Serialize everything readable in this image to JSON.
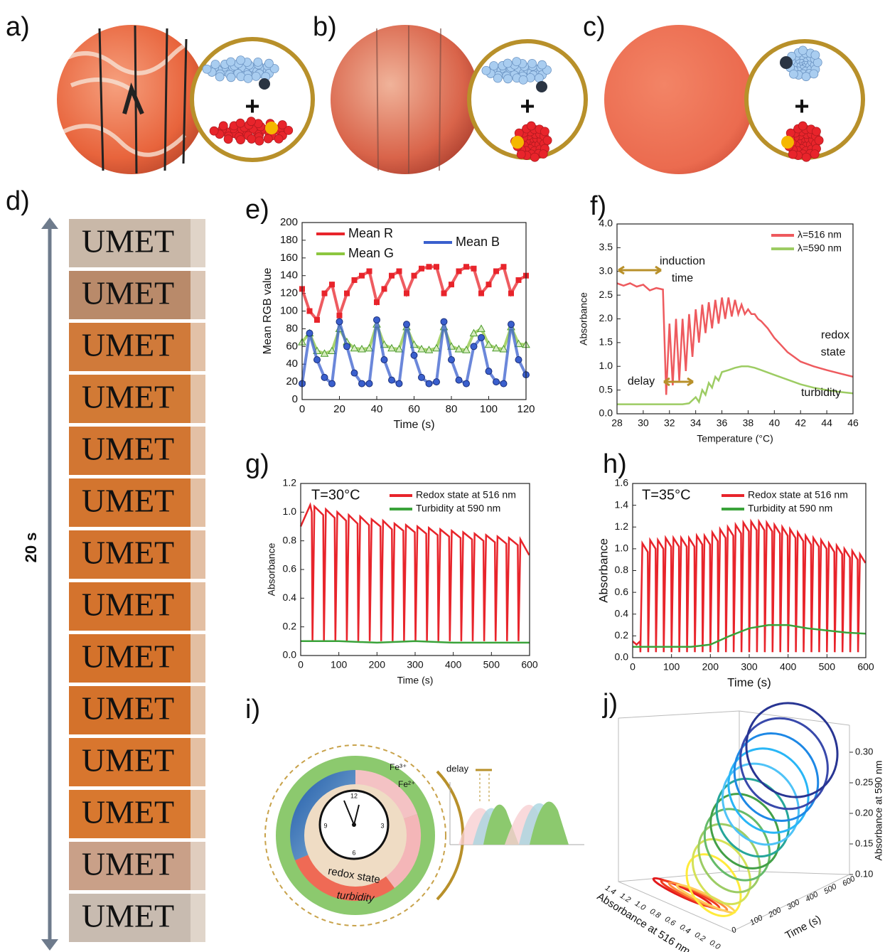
{
  "panel_labels": [
    "a)",
    "b)",
    "c)",
    "d)",
    "e)",
    "f)",
    "g)",
    "h)",
    "i)",
    "j)"
  ],
  "panels_abc": [
    {
      "plus": "+"
    },
    {
      "plus": "+"
    },
    {
      "plus": "+"
    }
  ],
  "panel_d": {
    "duration": "20 s",
    "frames": [
      "UMET",
      "UMET",
      "UMET",
      "UMET",
      "UMET",
      "UMET",
      "UMET",
      "UMET",
      "UMET",
      "UMET",
      "UMET",
      "UMET",
      "UMET",
      "UMET"
    ]
  },
  "panel_i": {
    "fe3": "Fe³⁺",
    "fe2": "Fe²⁺",
    "delay": "delay",
    "redox": "redox state",
    "turbidity": "turbidity",
    "clock": [
      "12",
      "3",
      "6",
      "9"
    ]
  },
  "panel_j": {
    "z_label": "Absorbance at 590 nm",
    "z_ticks": [
      "0.30",
      "0.25",
      "0.20",
      "0.15",
      "0.10"
    ],
    "time_label": "Time (s)",
    "time_ticks": [
      "0",
      "100",
      "200",
      "300",
      "400",
      "500",
      "600"
    ],
    "abs_label": "Absorbance at 516 nm",
    "abs_ticks": [
      "1.4",
      "1.2",
      "1.0",
      "0.8",
      "0.6",
      "0.4",
      "0.2",
      "0.0"
    ]
  },
  "chart_data": [
    {
      "type": "line",
      "xlabel": "Time (s)",
      "ylabel": "Mean RGB value",
      "x": [
        0,
        4,
        8,
        12,
        16,
        20,
        24,
        28,
        32,
        36,
        40,
        44,
        48,
        52,
        56,
        60,
        64,
        68,
        72,
        76,
        80,
        84,
        88,
        92,
        96,
        100,
        104,
        108,
        112,
        116,
        120
      ],
      "xlim": [
        0,
        120
      ],
      "xticks": [
        0,
        20,
        40,
        60,
        80,
        100,
        120
      ],
      "ylim": [
        0,
        200
      ],
      "yticks": [
        0,
        20,
        40,
        60,
        80,
        100,
        120,
        140,
        160,
        180,
        200
      ],
      "series": [
        {
          "name": "Mean R",
          "color": "#e8242b",
          "marker": "square",
          "values": [
            125,
            100,
            90,
            120,
            130,
            95,
            120,
            135,
            140,
            145,
            110,
            125,
            140,
            145,
            120,
            140,
            148,
            150,
            150,
            120,
            130,
            145,
            150,
            148,
            120,
            130,
            145,
            150,
            120,
            135,
            140
          ]
        },
        {
          "name": "Mean G",
          "color": "#8cc63f",
          "marker": "triangle",
          "values": [
            65,
            75,
            55,
            52,
            55,
            80,
            65,
            58,
            57,
            58,
            85,
            62,
            58,
            57,
            82,
            62,
            57,
            56,
            58,
            82,
            60,
            57,
            56,
            75,
            80,
            62,
            58,
            57,
            82,
            63,
            62
          ]
        },
        {
          "name": "Mean B",
          "color": "#3a5fcd",
          "marker": "circle",
          "values": [
            18,
            75,
            45,
            25,
            18,
            88,
            60,
            30,
            18,
            18,
            90,
            45,
            22,
            18,
            85,
            50,
            25,
            18,
            20,
            88,
            45,
            22,
            18,
            60,
            70,
            32,
            20,
            18,
            85,
            45,
            28
          ]
        }
      ]
    },
    {
      "type": "line",
      "xlabel": "Temperature (°C)",
      "ylabel": "Absorbance",
      "xlim": [
        28,
        46
      ],
      "xticks": [
        28,
        30,
        32,
        34,
        36,
        38,
        40,
        42,
        44,
        46
      ],
      "ylim": [
        0,
        4
      ],
      "yticks": [
        {
          "value": 0,
          "label": "0.0"
        },
        0.5,
        {
          "value": 1,
          "label": "1.0"
        },
        1.5,
        {
          "value": 2,
          "label": "2.0"
        },
        2.5,
        {
          "value": 3,
          "label": "3.0"
        },
        3.5,
        {
          "value": 4,
          "label": "4.0"
        }
      ],
      "annotations": [
        {
          "text": "induction",
          "color": "#222222"
        },
        {
          "text": "time",
          "color": "#222222"
        },
        {
          "text": "delay",
          "color": "#222222"
        },
        {
          "text": "redox",
          "color": "#e8474c"
        },
        {
          "text": "state",
          "color": "#e8474c"
        },
        {
          "text": "turbidity",
          "color": "#8cc63f"
        }
      ],
      "series": [
        {
          "name": "λ=516 nm",
          "color": "#ee5a5e",
          "x": [
            28,
            28.5,
            29,
            29.5,
            30,
            30.5,
            31,
            31.5,
            31.75,
            32,
            32.25,
            32.5,
            32.75,
            33,
            33.25,
            33.5,
            33.75,
            34,
            34.25,
            34.5,
            34.75,
            35,
            35.25,
            35.5,
            35.75,
            36,
            36.25,
            36.5,
            36.75,
            37,
            37.25,
            37.5,
            37.75,
            38,
            38.25,
            38.5,
            38.75,
            39,
            39.5,
            40,
            40.5,
            41,
            41.5,
            42,
            43,
            44,
            45,
            46
          ],
          "values": [
            2.75,
            2.7,
            2.75,
            2.68,
            2.72,
            2.6,
            2.65,
            2.62,
            0.4,
            1.9,
            0.6,
            2.0,
            0.7,
            2.0,
            0.9,
            2.1,
            1.2,
            2.2,
            1.5,
            2.3,
            1.7,
            2.35,
            1.8,
            2.4,
            1.9,
            2.45,
            2.0,
            2.45,
            2.05,
            2.4,
            2.1,
            2.3,
            2.1,
            2.2,
            2.1,
            2.1,
            2.0,
            1.95,
            1.8,
            1.6,
            1.45,
            1.3,
            1.2,
            1.1,
            1.0,
            0.92,
            0.85,
            0.78
          ]
        },
        {
          "name": "λ=590 nm",
          "color": "#9dcc63",
          "x": [
            28,
            30,
            32,
            33,
            33.5,
            34,
            34.25,
            34.5,
            34.75,
            35,
            35.25,
            35.5,
            35.75,
            36,
            36.5,
            37,
            37.5,
            38,
            38.5,
            39,
            40,
            41,
            42,
            43,
            44,
            45,
            46
          ],
          "values": [
            0.2,
            0.2,
            0.2,
            0.2,
            0.22,
            0.35,
            0.25,
            0.5,
            0.4,
            0.65,
            0.55,
            0.78,
            0.7,
            0.88,
            0.92,
            0.97,
            1.0,
            1.0,
            0.97,
            0.92,
            0.82,
            0.72,
            0.62,
            0.55,
            0.5,
            0.46,
            0.43
          ]
        }
      ]
    },
    {
      "type": "line",
      "xlabel": "Time (s)",
      "ylabel": "Absorbance",
      "annotation": "T=30°C",
      "xlim": [
        0,
        600
      ],
      "xticks": [
        0,
        100,
        200,
        300,
        400,
        500,
        600
      ],
      "ylim": [
        0,
        1.2
      ],
      "yticks": [
        {
          "value": 0,
          "label": "0.0"
        },
        0.2,
        0.4,
        0.6,
        0.8,
        {
          "value": 1,
          "label": "1.0"
        },
        1.2
      ],
      "series": [
        {
          "name": "Redox state at 516 nm",
          "color": "#e8242b",
          "x": [
            0,
            25,
            29,
            31,
            36,
            59,
            61,
            66,
            89,
            91,
            96,
            119,
            121,
            126,
            149,
            151,
            156,
            179,
            181,
            186,
            209,
            211,
            216,
            239,
            241,
            246,
            269,
            271,
            276,
            299,
            301,
            306,
            329,
            331,
            336,
            359,
            361,
            366,
            389,
            391,
            396,
            419,
            421,
            426,
            449,
            451,
            456,
            479,
            481,
            486,
            509,
            511,
            516,
            539,
            541,
            546,
            569,
            571,
            576,
            599
          ],
          "values": [
            0.9,
            1.05,
            1.0,
            0.1,
            1.04,
            0.98,
            0.1,
            1.02,
            0.96,
            0.1,
            1.0,
            0.94,
            0.1,
            0.98,
            0.92,
            0.1,
            0.97,
            0.91,
            0.1,
            0.95,
            0.9,
            0.1,
            0.94,
            0.88,
            0.1,
            0.92,
            0.87,
            0.1,
            0.91,
            0.86,
            0.1,
            0.9,
            0.85,
            0.1,
            0.89,
            0.84,
            0.1,
            0.88,
            0.83,
            0.1,
            0.87,
            0.82,
            0.1,
            0.86,
            0.81,
            0.1,
            0.85,
            0.8,
            0.1,
            0.84,
            0.79,
            0.1,
            0.83,
            0.78,
            0.1,
            0.82,
            0.77,
            0.1,
            0.81,
            0.7
          ]
        },
        {
          "name": "Turbidity at 590 nm",
          "color": "#3aa33a",
          "x": [
            0,
            100,
            200,
            300,
            400,
            500,
            600
          ],
          "values": [
            0.1,
            0.1,
            0.09,
            0.1,
            0.09,
            0.09,
            0.09
          ]
        }
      ]
    },
    {
      "type": "line",
      "xlabel": "Time (s)",
      "ylabel": "Absorbance",
      "annotation": "T=35°C",
      "xlim": [
        0,
        600
      ],
      "xticks": [
        0,
        100,
        200,
        300,
        400,
        500,
        600
      ],
      "ylim": [
        0,
        1.6
      ],
      "yticks": [
        {
          "value": 0,
          "label": "0.0"
        },
        0.2,
        0.4,
        0.6,
        0.8,
        {
          "value": 1,
          "label": "1.0"
        },
        1.2,
        1.4,
        1.6
      ],
      "series": [
        {
          "name": "Redox state at 516 nm",
          "color": "#e8242b",
          "x": [
            0,
            10,
            19,
            20,
            25,
            39,
            40,
            45,
            59,
            60,
            65,
            79,
            80,
            85,
            99,
            100,
            105,
            119,
            120,
            125,
            139,
            140,
            145,
            159,
            160,
            165,
            179,
            180,
            185,
            199,
            200,
            205,
            219,
            220,
            225,
            239,
            240,
            245,
            259,
            260,
            265,
            279,
            280,
            285,
            299,
            300,
            305,
            319,
            320,
            325,
            339,
            340,
            345,
            359,
            360,
            365,
            379,
            380,
            385,
            399,
            400,
            405,
            419,
            420,
            425,
            439,
            440,
            445,
            459,
            460,
            465,
            479,
            480,
            485,
            499,
            500,
            505,
            519,
            520,
            525,
            539,
            540,
            545,
            559,
            560,
            565,
            579,
            580,
            585,
            599
          ],
          "values": [
            0.15,
            0.12,
            0.15,
            0.05,
            1.05,
            0.97,
            0.05,
            1.08,
            1.0,
            0.05,
            1.08,
            1.0,
            0.05,
            1.1,
            1.02,
            0.05,
            1.1,
            1.02,
            0.05,
            1.1,
            1.02,
            0.05,
            1.1,
            1.02,
            0.05,
            1.12,
            1.04,
            0.05,
            1.12,
            1.04,
            0.05,
            1.15,
            1.07,
            0.05,
            1.18,
            1.1,
            0.05,
            1.2,
            1.12,
            0.05,
            1.22,
            1.14,
            0.05,
            1.24,
            1.16,
            0.05,
            1.25,
            1.17,
            0.05,
            1.25,
            1.17,
            0.05,
            1.24,
            1.16,
            0.05,
            1.22,
            1.14,
            0.05,
            1.2,
            1.12,
            0.05,
            1.18,
            1.1,
            0.05,
            1.15,
            1.07,
            0.05,
            1.12,
            1.04,
            0.05,
            1.1,
            1.02,
            0.05,
            1.08,
            1.0,
            0.05,
            1.05,
            0.97,
            0.05,
            1.03,
            0.95,
            0.05,
            1.0,
            0.92,
            0.05,
            0.98,
            0.9,
            0.05,
            0.95,
            0.87
          ]
        },
        {
          "name": "Turbidity at 590 nm",
          "color": "#3aa33a",
          "x": [
            0,
            150,
            200,
            250,
            300,
            350,
            400,
            450,
            500,
            550,
            600
          ],
          "values": [
            0.1,
            0.1,
            0.12,
            0.2,
            0.27,
            0.3,
            0.3,
            0.27,
            0.25,
            0.23,
            0.22
          ]
        }
      ]
    }
  ]
}
